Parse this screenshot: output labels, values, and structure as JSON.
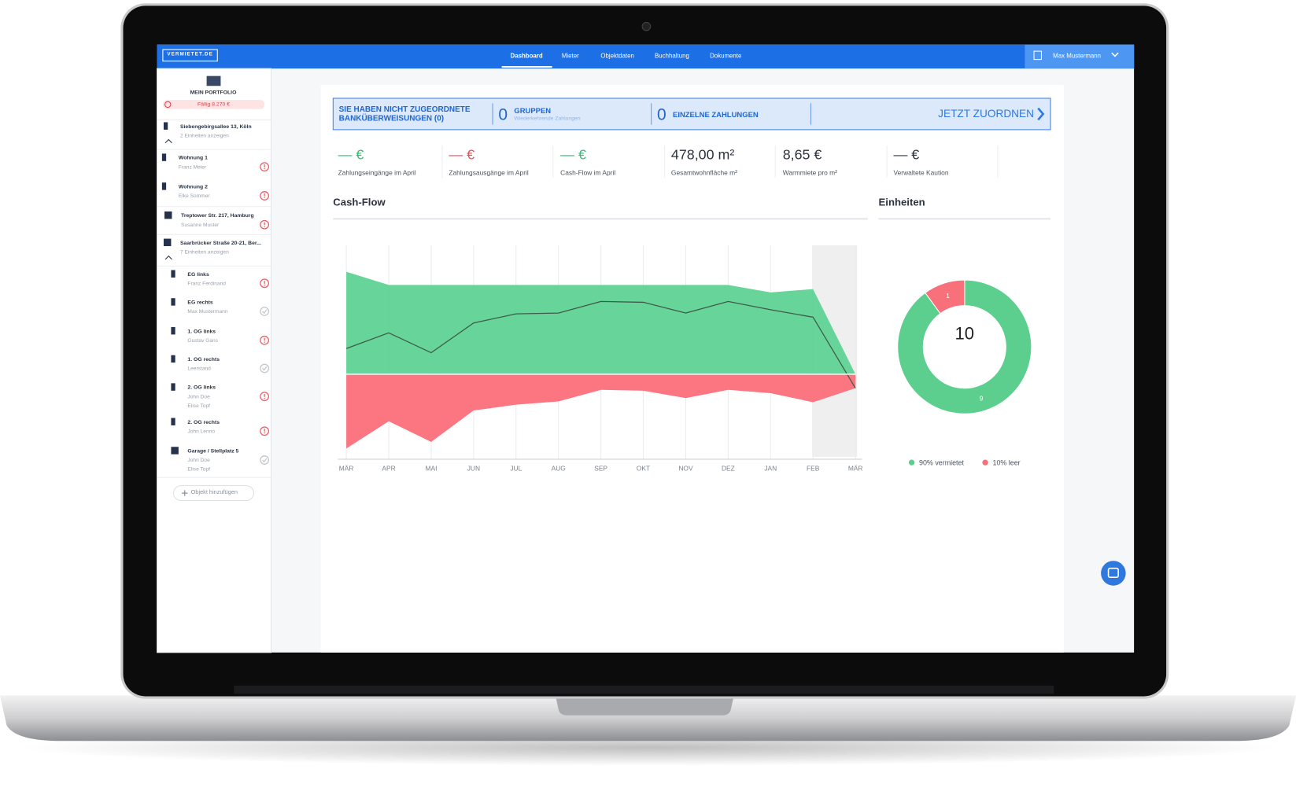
{
  "nav": {
    "logo": "VERMIETET.DE",
    "items": [
      "Dashboard",
      "Mieter",
      "Objektdaten",
      "Buchhaltung",
      "Dokumente"
    ],
    "user": "Max Mustermann"
  },
  "sidebar": {
    "title": "MEIN PORTFOLIO",
    "due": "Fällig 8.270 €",
    "items": [
      {
        "title": "Siebengebirgsallee 13, Köln",
        "lines": [
          "2 Einheiten anzeigen"
        ]
      },
      {
        "title": "Wohnung 1",
        "lines": [
          "Franz Meier"
        ],
        "alert": true
      },
      {
        "title": "Wohnung 2",
        "lines": [
          "Elke Sommer"
        ],
        "alert": true
      },
      {
        "title": "Treptower Str. 217, Hamburg",
        "lines": [
          "Susanne Muster"
        ],
        "alert": true
      },
      {
        "title": "Saarbrücker Straße 20-21, Ber...",
        "lines": [
          "7 Einheiten anzeigen"
        ]
      },
      {
        "title": "EG links",
        "lines": [
          "Franz Ferdinand"
        ],
        "alert": true
      },
      {
        "title": "EG rechts",
        "lines": [
          "Max Mustermann"
        ],
        "alert": false
      },
      {
        "title": "1. OG links",
        "lines": [
          "Gustav Gans"
        ],
        "alert": true
      },
      {
        "title": "1. OG rechts",
        "lines": [
          "Leerstand"
        ],
        "alert": false
      },
      {
        "title": "2. OG links",
        "lines": [
          "John Doe",
          "Elise Topf"
        ],
        "alert": true
      },
      {
        "title": "2. OG rechts",
        "lines": [
          "John Lenno"
        ],
        "alert": true
      },
      {
        "title": "Garage / Stellplatz 5",
        "lines": [
          "John Doe",
          "Elise Topf"
        ],
        "alert": false
      }
    ],
    "add_button": "Objekt hinzufügen"
  },
  "banner": {
    "text": "SIE HABEN NICHT ZUGEORDNETE BANKÜBERWEISUNGEN (0)",
    "groups_count": 0,
    "groups_label": "GRUPPEN",
    "groups_sub": "Wiederkehrende Zahlungen",
    "single_count": 0,
    "single_label": "EINZELNE ZAHLUNGEN",
    "action": "JETZT ZUORDNEN"
  },
  "stats": [
    {
      "value": "— €",
      "label": "Zahlungseingänge im April",
      "color": "#2fbf71"
    },
    {
      "value": "— €",
      "label": "Zahlungsausgänge im April",
      "color": "#ef4c57"
    },
    {
      "value": "— €",
      "label": "Cash-Flow im April",
      "color": "#2fbf71"
    },
    {
      "value": "478,00 m²",
      "label": "Gesamtwohnfläche m²",
      "color": "#2b3440"
    },
    {
      "value": "8,65 €",
      "label": "Warmmiete pro m²",
      "color": "#2b3440"
    },
    {
      "value": "— €",
      "label": "Verwaltete Kaution",
      "color": "#2b3440"
    }
  ],
  "chart_data": [
    {
      "type": "area",
      "title": "Cash-Flow",
      "categories": [
        "MÄR",
        "APR",
        "MAI",
        "JUN",
        "JUL",
        "AUG",
        "SEP",
        "OKT",
        "NOV",
        "DEZ",
        "JAN",
        "FEB",
        "MÄR"
      ],
      "ylim": [
        -100,
        156
      ],
      "series": [
        {
          "color": "#5fd394",
          "values": [
            124,
            108,
            108,
            108,
            108,
            108,
            108,
            108,
            108,
            108,
            99,
            103,
            0
          ]
        },
        {
          "color": "#fb6f7a",
          "values": [
            -90,
            -57,
            -82,
            -44,
            -37,
            -33,
            -19,
            -20,
            -29,
            -19,
            -23,
            -34,
            -17
          ]
        },
        {
          "color": "#3d5a4b",
          "style": "line",
          "values": [
            31,
            50,
            26,
            62,
            73,
            74,
            88,
            87,
            74,
            88,
            78,
            69,
            -17
          ]
        }
      ]
    },
    {
      "type": "pie",
      "title": "Einheiten",
      "values": [
        9,
        1
      ],
      "colors": [
        "#5ccf8e",
        "#f8707a"
      ],
      "total": 10,
      "labels": [
        "90% vermietet",
        "10% leer"
      ]
    }
  ]
}
